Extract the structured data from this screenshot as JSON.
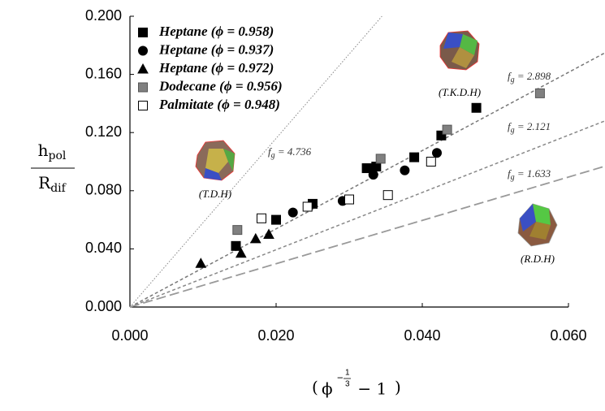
{
  "chart_data": {
    "type": "scatter",
    "xlim": [
      0,
      0.06
    ],
    "ylim": [
      0,
      0.2
    ],
    "xticks": [
      {
        "value": 0,
        "label": "0.000"
      },
      {
        "value": 0.02,
        "label": "0.020"
      },
      {
        "value": 0.04,
        "label": "0.040"
      },
      {
        "value": 0.06,
        "label": "0.060"
      }
    ],
    "yticks": [
      {
        "value": 0,
        "label": "0.000"
      },
      {
        "value": 0.04,
        "label": "0.040"
      },
      {
        "value": 0.08,
        "label": "0.080"
      },
      {
        "value": 0.12,
        "label": "0.120"
      },
      {
        "value": 0.16,
        "label": "0.160"
      },
      {
        "value": 0.2,
        "label": "0.200"
      }
    ],
    "y_label": {
      "numerator": "h",
      "numerator_sub": "pol",
      "denominator": "R",
      "denominator_sub": "dif"
    },
    "x_label": {
      "open": "(",
      "base": "ϕ",
      "exp_sign": "−",
      "exp_num": "1",
      "exp_den": "3",
      "rest": " − 1",
      "close": ")"
    },
    "legend": "upper left",
    "series": [
      {
        "name": "Heptane (ϕ = 0.958)",
        "marker": "square",
        "color": "#000000",
        "x": [
          0.0145,
          0.02,
          0.025,
          0.0324,
          0.0337,
          0.0389,
          0.0426,
          0.0474
        ],
        "values": [
          0.042,
          0.06,
          0.071,
          0.0955,
          0.0966,
          0.103,
          0.118,
          0.137
        ]
      },
      {
        "name": "Heptane (ϕ = 0.937)",
        "marker": "circle",
        "color": "#000000",
        "x": [
          0.0223,
          0.0291,
          0.0333,
          0.0376,
          0.042
        ],
        "values": [
          0.065,
          0.073,
          0.091,
          0.094,
          0.106
        ]
      },
      {
        "name": "Heptane (ϕ = 0.972)",
        "marker": "triangle",
        "color": "#000000",
        "x": [
          0.0097,
          0.0152,
          0.0172,
          0.019
        ],
        "values": [
          0.03,
          0.037,
          0.047,
          0.05
        ]
      },
      {
        "name": "Dodecane (ϕ = 0.956)",
        "marker": "square",
        "color": "#808080",
        "x": [
          0.0147,
          0.0343,
          0.0434,
          0.0561
        ],
        "values": [
          0.053,
          0.102,
          0.122,
          0.147
        ]
      },
      {
        "name": "Palmitate (ϕ = 0.948)",
        "marker": "square",
        "color": "#ffffff",
        "x": [
          0.018,
          0.0243,
          0.03,
          0.0353,
          0.0412
        ],
        "values": [
          0.061,
          0.069,
          0.074,
          0.077,
          0.1
        ]
      }
    ],
    "ref_lines": [
      {
        "symbol": "f",
        "sub": "g",
        "text": " = 4.736",
        "slope": 5.8,
        "style": "dotted"
      },
      {
        "symbol": "f",
        "sub": "g",
        "text": " = 2.898",
        "slope": 2.69,
        "style": "short-dash"
      },
      {
        "symbol": "f",
        "sub": "g",
        "text": " = 2.121",
        "slope": 1.97,
        "style": "dash"
      },
      {
        "symbol": "f",
        "sub": "g",
        "text": " = 1.633",
        "slope": 1.49,
        "style": "long-dash"
      }
    ],
    "shapes": [
      "(T.D.H)",
      "(T.K.D.H)",
      "(R.D.H)"
    ]
  }
}
